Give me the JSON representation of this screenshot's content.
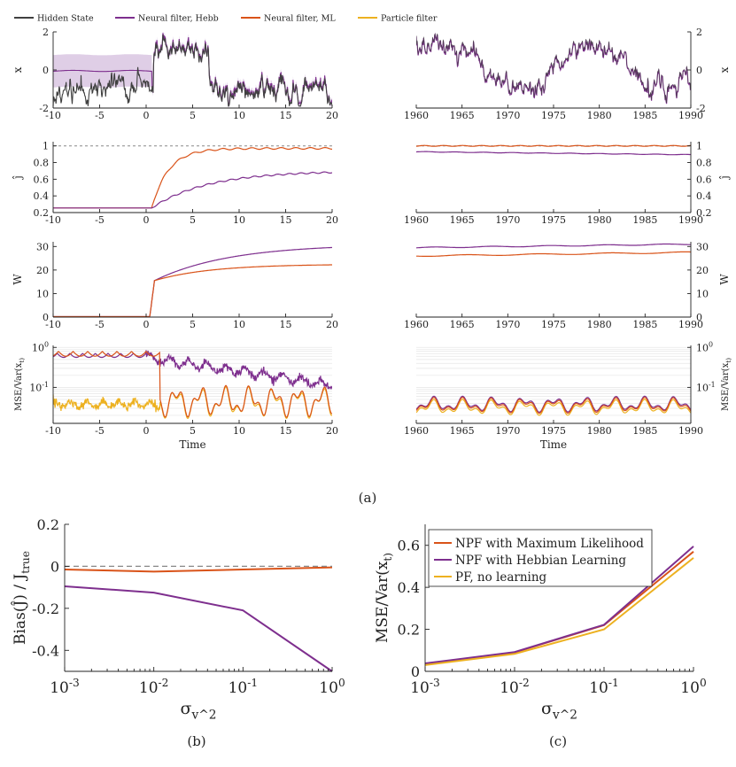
{
  "colors": {
    "hidden": "#404040",
    "hebb": "#7E2F8E",
    "ml": "#D95319",
    "pf": "#EDB120",
    "band": "#d9c6e2",
    "dashed": "#888888"
  },
  "legend_top": [
    {
      "label": "Hidden State",
      "color_key": "hidden"
    },
    {
      "label": "Neural filter, Hebb",
      "color_key": "hebb"
    },
    {
      "label": "Neural filter, ML",
      "color_key": "ml"
    },
    {
      "label": "Particle filter",
      "color_key": "pf"
    }
  ],
  "panel_a": {
    "caption": "(a)",
    "left_xticks": [
      "-10",
      "-5",
      "0",
      "5",
      "10",
      "15",
      "20"
    ],
    "right_xticks": [
      "1960",
      "1965",
      "1970",
      "1975",
      "1980",
      "1985",
      "1990"
    ],
    "time_label": "Time",
    "rows": [
      {
        "ylabel": "x",
        "yticks": [
          "2",
          "0",
          "-2"
        ]
      },
      {
        "ylabel": "ĵ",
        "yticks": [
          "1",
          "0.8",
          "0.6",
          "0.4",
          "0.2"
        ]
      },
      {
        "ylabel": "W",
        "yticks": [
          "30",
          "20",
          "10",
          "0"
        ]
      },
      {
        "ylabel": "MSE/Var(x_t)",
        "yticks": [
          "10^0",
          "10^-1"
        ]
      }
    ]
  },
  "chart_data": [
    {
      "id": "b",
      "type": "line",
      "caption": "(b)",
      "xlabel": "σ_v^2",
      "ylabel": "Bias(Ĵ) / J_true",
      "xscale": "log",
      "x": [
        0.001,
        0.01,
        0.1,
        1
      ],
      "xticks": [
        "10^-3",
        "10^-2",
        "10^-1",
        "10^0"
      ],
      "ylim": [
        -0.5,
        0.2
      ],
      "yticks": [
        "0.2",
        "0",
        "-0.2",
        "-0.4"
      ],
      "series": [
        {
          "name": "NPF with Maximum Likelihood",
          "color_key": "ml",
          "values": [
            -0.015,
            -0.025,
            -0.015,
            -0.005
          ]
        },
        {
          "name": "NPF with Hebbian Learning",
          "color_key": "hebb",
          "values": [
            -0.095,
            -0.125,
            -0.21,
            -0.5
          ]
        },
        {
          "name": "zero reference",
          "color_key": "dashed",
          "dashed": true,
          "values": [
            0,
            0,
            0,
            0
          ]
        }
      ]
    },
    {
      "id": "c",
      "type": "line",
      "caption": "(c)",
      "xlabel": "σ_v^2",
      "ylabel": "MSE/Var(x_t)",
      "xscale": "log",
      "x": [
        0.001,
        0.01,
        0.1,
        1
      ],
      "xticks": [
        "10^-3",
        "10^-2",
        "10^-1",
        "10^0"
      ],
      "ylim": [
        0,
        0.7
      ],
      "yticks": [
        "0",
        "0.2",
        "0.4",
        "0.6"
      ],
      "legend": "top-left",
      "series": [
        {
          "name": "NPF with Maximum Likelihood",
          "color_key": "ml",
          "values": [
            0.035,
            0.09,
            0.22,
            0.57
          ]
        },
        {
          "name": "NPF with Hebbian Learning",
          "color_key": "hebb",
          "values": [
            0.038,
            0.092,
            0.222,
            0.595
          ]
        },
        {
          "name": "PF, no learning",
          "color_key": "pf",
          "values": [
            0.03,
            0.083,
            0.2,
            0.54
          ]
        }
      ]
    }
  ]
}
